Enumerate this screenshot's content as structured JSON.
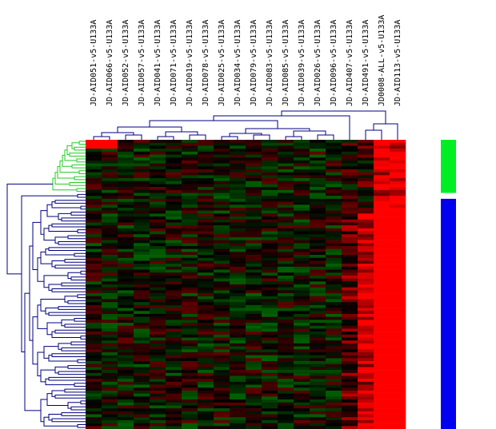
{
  "chart_data": {
    "type": "heatmap",
    "title": "",
    "xlabel": "",
    "ylabel": "",
    "columns": [
      "JD-AID051-v5-U133A",
      "JD-AID066-v5-U133A",
      "JD-AID052-v5-U133A",
      "JD-AID057-v5-U133A",
      "JD-AID041-v5-U133A",
      "JD-AID071-v5-U133A",
      "JD-AID019-v5-U133A",
      "JD-AID078-v5-U133A",
      "JD-AID025-v5-U133A",
      "JD-AID034-v5-U133A",
      "JD-AID079-v5-U133A",
      "JD-AID083-v5-U133A",
      "JD-AID085-v5-U133A",
      "JD-AID039-v5-U133A",
      "JD-AID026-v5-U133A",
      "JD-AID096-v5-U133A",
      "JD-AID407-v5-U133A",
      "JD-AID491-v5-U133A",
      "JD0008-ALL-v5-U133A",
      "JD-AID113-v5-U133A"
    ],
    "row_count": 98,
    "color_scale": {
      "low": "#00cc00",
      "mid": "#000000",
      "high": "#ff0000",
      "min": -3,
      "max": 3
    },
    "row_clusters": [
      {
        "color": "#00ee22",
        "start_row": 0,
        "end_row": 17
      },
      {
        "color": "#0000ee",
        "start_row": 20,
        "end_row": 97
      }
    ],
    "grid": false,
    "legend": "none"
  },
  "dendrogram_colors": {
    "tree": "#000080",
    "green_cluster": "#22cc22"
  }
}
